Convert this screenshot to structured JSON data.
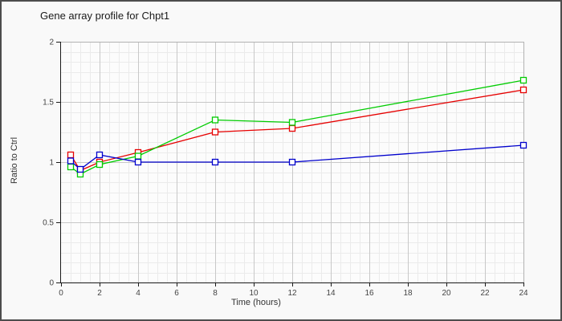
{
  "title": "Gene array profile for Chpt1",
  "chart_data": {
    "type": "line",
    "title": "Gene array profile for Chpt1",
    "xlabel": "Time (hours)",
    "ylabel": "Ratio to Ctrl",
    "xlim": [
      0,
      24
    ],
    "ylim": [
      0,
      2
    ],
    "x_ticks": [
      0,
      2,
      4,
      6,
      8,
      10,
      12,
      14,
      16,
      18,
      20,
      22,
      24
    ],
    "y_ticks": [
      0,
      0.5,
      1,
      1.5,
      2
    ],
    "grid": "major+minor",
    "legend": "none",
    "marker": "open-square",
    "x": [
      0.5,
      1,
      2,
      4,
      8,
      12,
      24
    ],
    "series": [
      {
        "name": "red",
        "color": "#e60000",
        "values": [
          1.06,
          0.93,
          1.0,
          1.08,
          1.25,
          1.28,
          1.6
        ]
      },
      {
        "name": "green",
        "color": "#00cc00",
        "values": [
          0.96,
          0.9,
          0.98,
          1.05,
          1.35,
          1.33,
          1.68
        ]
      },
      {
        "name": "blue",
        "color": "#0000cc",
        "values": [
          1.01,
          0.94,
          1.06,
          1.0,
          1.0,
          1.0,
          1.14
        ]
      }
    ],
    "colors": {
      "grid_minor": "#ebebeb",
      "grid_major": "#c8c8c8",
      "plot_border": "#b2b2b2",
      "axis": "#1a1a1a",
      "tick_text": "#444444",
      "plot_fill": "#fcfcfc",
      "marker_fill": "#ffffff"
    }
  }
}
